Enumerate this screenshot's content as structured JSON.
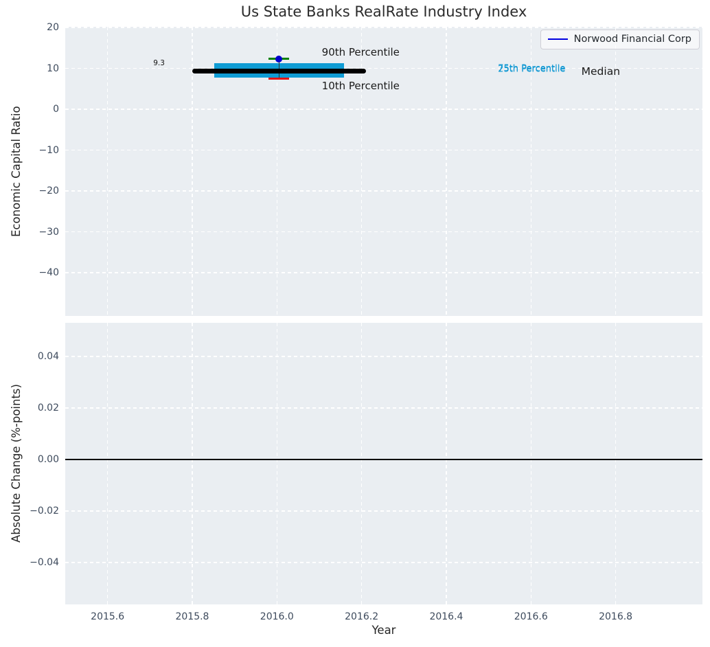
{
  "title": "Us State Banks RealRate Industry Index",
  "legend": {
    "label": "Norwood Financial Corp",
    "line_color": "#0000e0",
    "position": "upper right"
  },
  "x_axis": {
    "label": "Year",
    "xlim": [
      2015.5,
      2017.005
    ],
    "ticks": [
      {
        "v": 2015.6,
        "label": "2015.6"
      },
      {
        "v": 2015.8,
        "label": "2015.8"
      },
      {
        "v": 2016.0,
        "label": "2016.0"
      },
      {
        "v": 2016.2,
        "label": "2016.2"
      },
      {
        "v": 2016.4,
        "label": "2016.4"
      },
      {
        "v": 2016.6,
        "label": "2016.6"
      },
      {
        "v": 2016.8,
        "label": "2016.8"
      }
    ]
  },
  "chart_data": [
    {
      "type": "boxplot",
      "ylabel": "Economic Capital Ratio",
      "ylim": [
        -50.6,
        20.2
      ],
      "grid": true,
      "yticks": [
        {
          "v": 20,
          "label": "20"
        },
        {
          "v": 10,
          "label": "10"
        },
        {
          "v": 0,
          "label": "0"
        },
        {
          "v": -10,
          "label": "−10"
        },
        {
          "v": -20,
          "label": "−20"
        },
        {
          "v": -30,
          "label": "−30"
        },
        {
          "v": -40,
          "label": "−40"
        }
      ],
      "box": {
        "x": 2016.005,
        "p90": 12.4,
        "p75": 11.3,
        "median": 9.3,
        "p25": 7.8,
        "p10": 7.5,
        "company_value": 12.3,
        "box_half_width": 0.153,
        "median_half_width": 0.205,
        "cap_half_width": 0.0245
      },
      "colors": {
        "box": "#0f9cd4",
        "median_line": "#000000",
        "p90_cap": "#008000",
        "p10_cap": "#e41313",
        "company_dot": "#0000cd",
        "whisker": "#2f2f2f"
      },
      "annotations": [
        {
          "text": "90th Percentile",
          "x": 2016.106,
          "y": 13.9,
          "ha": "left",
          "color": "#1a1a1a",
          "size": 15
        },
        {
          "text": "10th Percentile",
          "x": 2016.106,
          "y": 5.8,
          "ha": "left",
          "color": "#1a1a1a",
          "size": 15
        },
        {
          "text": "75th Percentile",
          "x": 2016.522,
          "y": 9.95,
          "ha": "left",
          "color": "#1399d3",
          "size": 13
        },
        {
          "text": "25th Percentile",
          "x": 2016.522,
          "y": 9.7,
          "ha": "left",
          "color": "#1399d3",
          "size": 13
        },
        {
          "text": "Median",
          "x": 2016.719,
          "y": 9.3,
          "ha": "left",
          "color": "#1a1a1a",
          "size": 15.5
        },
        {
          "text": "9.3",
          "x": 2015.735,
          "y": 11.35,
          "ha": "right",
          "color": "#111111",
          "size": 10.5
        }
      ]
    },
    {
      "type": "line",
      "ylabel": "Absolute Change (%-points)",
      "ylim": [
        -0.0563,
        0.0531
      ],
      "grid": true,
      "zero_line": 0.0,
      "series": [],
      "yticks": [
        {
          "v": 0.04,
          "label": "0.04"
        },
        {
          "v": 0.02,
          "label": "0.02"
        },
        {
          "v": 0.0,
          "label": "0.00"
        },
        {
          "v": -0.02,
          "label": "−0.02"
        },
        {
          "v": -0.04,
          "label": "−0.04"
        }
      ]
    }
  ]
}
